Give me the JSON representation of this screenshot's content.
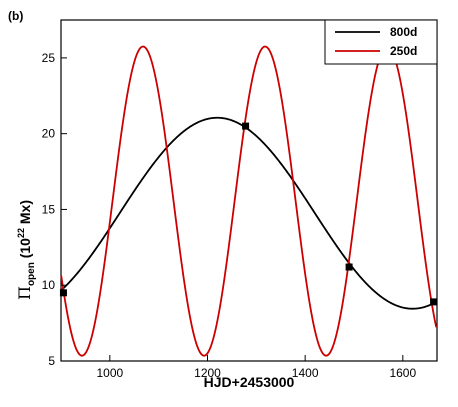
{
  "chart_data": {
    "type": "line",
    "panel_label": "(b)",
    "xlabel": "HJD+2453000",
    "ylabel": {
      "symbol": "Π",
      "subscript": "open",
      "paren_open": " (10",
      "superscript": "22",
      "unit": " Mx)"
    },
    "xlim": [
      900,
      1670
    ],
    "ylim": [
      5,
      27.5
    ],
    "xticks": [
      1000,
      1200,
      1400,
      1600
    ],
    "yticks": [
      5,
      10,
      15,
      20,
      25
    ],
    "grid": false,
    "legend_position": "top-right",
    "series": [
      {
        "name": "800d",
        "color": "#000000",
        "model": {
          "mean": 14.75,
          "amplitude": 6.3,
          "period": 800,
          "peak_x": 1220
        },
        "markers": [
          {
            "x": 905,
            "y": 9.5
          },
          {
            "x": 1278,
            "y": 20.5
          },
          {
            "x": 1490,
            "y": 11.2
          },
          {
            "x": 1663,
            "y": 8.9
          }
        ]
      },
      {
        "name": "250d",
        "color": "#cc0000",
        "model": {
          "mean": 15.55,
          "amplitude": 10.2,
          "period": 250,
          "peak_x": 1068
        }
      }
    ]
  }
}
